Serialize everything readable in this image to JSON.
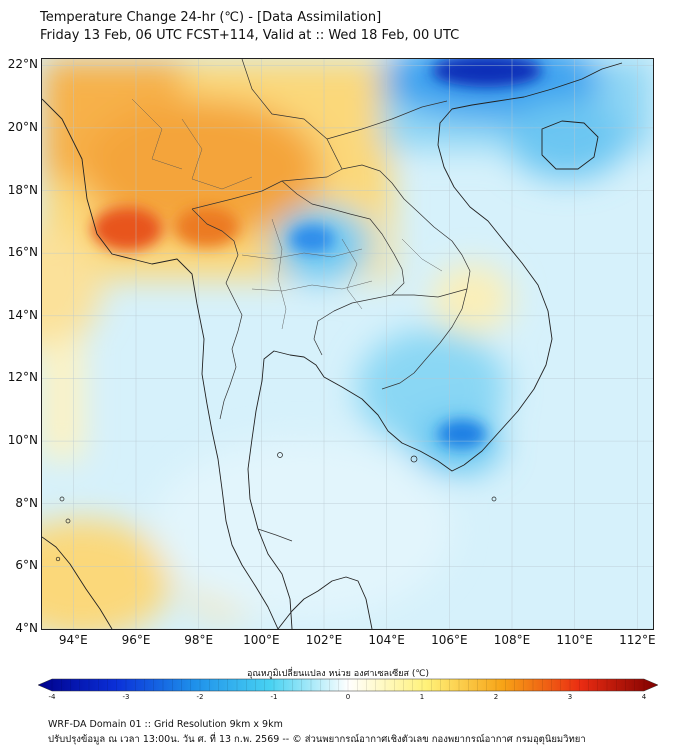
{
  "title_line1": "Temperature Change 24-hr (℃) - [Data Assimilation]",
  "title_line2": "Friday 13 Feb, 06 UTC FCST+114, Valid at :: Wed 18 Feb, 00 UTC",
  "map": {
    "lon_range": [
      93,
      112.5
    ],
    "lat_range": [
      4,
      22.2
    ],
    "lat_labels": [
      "22°N",
      "20°N",
      "18°N",
      "16°N",
      "14°N",
      "12°N",
      "10°N",
      "8°N",
      "6°N",
      "4°N"
    ],
    "lat_values": [
      22,
      20,
      18,
      16,
      14,
      12,
      10,
      8,
      6,
      4
    ],
    "lon_labels": [
      "94°E",
      "96°E",
      "98°E",
      "100°E",
      "102°E",
      "104°E",
      "106°E",
      "108°E",
      "110°E",
      "112°E"
    ],
    "lon_values": [
      94,
      96,
      98,
      100,
      102,
      104,
      106,
      108,
      110,
      112
    ],
    "colors": {
      "background": "#cfeefa",
      "land": "#eef6f8",
      "coast": "#222222",
      "border": "#333333",
      "grid": "#b8c8d0"
    }
  },
  "colorbar": {
    "title": "อุณหภูมิเปลี่ยนแปลง หน่วย องศาเซลเซียส (℃)",
    "min": -4,
    "max": 4,
    "ticks": [
      "-4",
      "-3",
      "-2",
      "-1",
      "0",
      "1",
      "2",
      "3",
      "4"
    ],
    "tick_values": [
      -4,
      -3,
      -2,
      -1,
      0,
      1,
      2,
      3,
      4
    ],
    "stops": [
      {
        "value": -4,
        "color": "#00008b"
      },
      {
        "value": -3,
        "color": "#0a2fd8"
      },
      {
        "value": -2,
        "color": "#1e8fea"
      },
      {
        "value": -1,
        "color": "#48d2f2"
      },
      {
        "value": 0,
        "color": "#ffffff"
      },
      {
        "value": 1,
        "color": "#fff27a"
      },
      {
        "value": 2,
        "color": "#f7a316"
      },
      {
        "value": 3,
        "color": "#ea2c12"
      },
      {
        "value": 4,
        "color": "#7f0000"
      }
    ]
  },
  "footer_line1": "WRF-DA Domain 01 :: Grid Resolution 9km x 9km",
  "footer_line2": "ปรับปรุงข้อมูล ณ เวลา 13:00น. วัน ศ. ที่ 13 ก.พ. 2569 -- © ส่วนพยากรณ์อากาศเชิงตัวเลข กองพยากรณ์อากาศ กรมอุตุนิยมวิทยา"
}
